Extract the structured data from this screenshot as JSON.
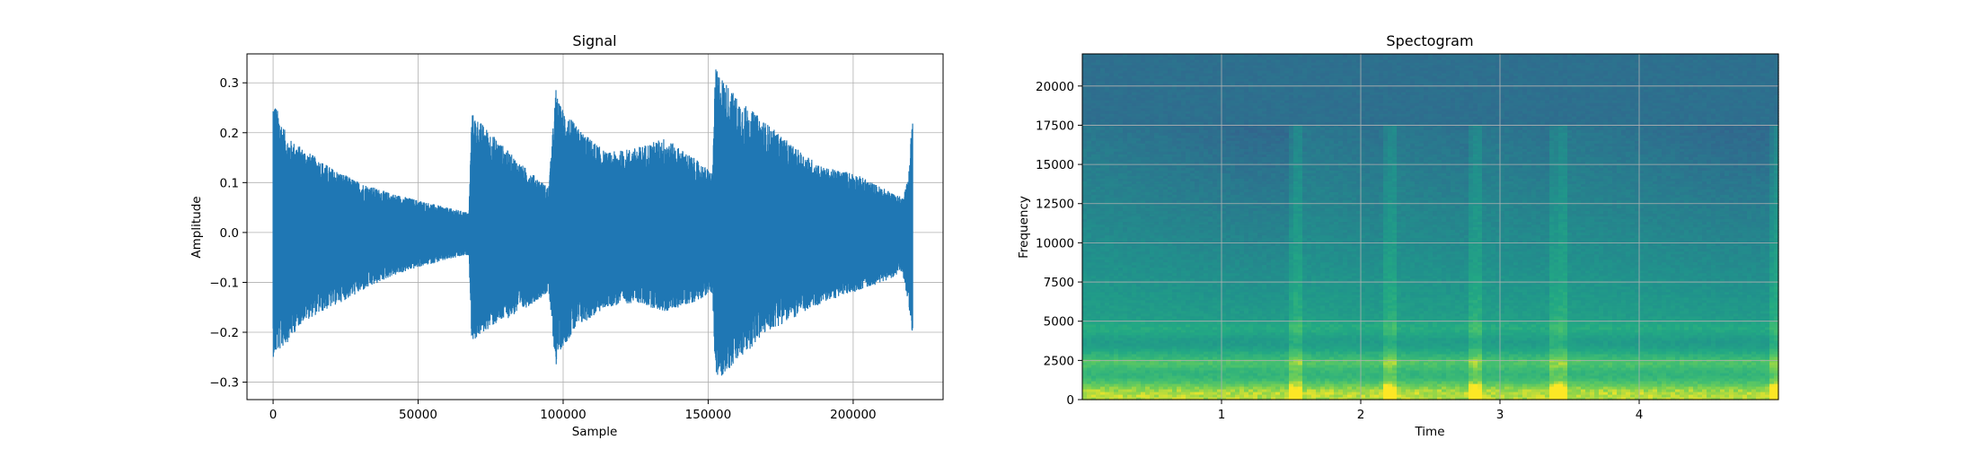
{
  "chart_data": [
    {
      "type": "line",
      "title": "Signal",
      "xlabel": "Sample",
      "ylabel": "Amplitude",
      "xlim": [
        -9000,
        231000
      ],
      "ylim": [
        -0.335,
        0.358
      ],
      "grid": true,
      "line_color": "#1f77b4",
      "x_ticks": [
        0,
        50000,
        100000,
        150000,
        200000
      ],
      "x_tick_labels": [
        "0",
        "50000",
        "100000",
        "150000",
        "200000"
      ],
      "y_ticks": [
        -0.3,
        -0.2,
        -0.1,
        0.0,
        0.1,
        0.2,
        0.3
      ],
      "y_tick_labels": [
        "−0.3",
        "−0.2",
        "−0.1",
        "0.0",
        "0.1",
        "0.2",
        "0.3"
      ],
      "series": [
        {
          "sample": [
            0,
            5000,
            10000,
            20000,
            30000,
            40000,
            50000,
            60000,
            67500,
            68500,
            75000,
            85000,
            95000,
            97500,
            98500,
            105000,
            115000,
            125000,
            135000,
            145000,
            151500,
            152500,
            160000,
            170000,
            180000,
            190000,
            200000,
            210000,
            217000,
            219000,
            220500
          ],
          "upper": [
            0.27,
            0.19,
            0.17,
            0.13,
            0.1,
            0.08,
            0.065,
            0.05,
            0.04,
            0.24,
            0.2,
            0.14,
            0.09,
            0.29,
            0.26,
            0.21,
            0.16,
            0.17,
            0.19,
            0.15,
            0.12,
            0.33,
            0.27,
            0.22,
            0.17,
            0.13,
            0.12,
            0.09,
            0.07,
            0.11,
            0.25
          ],
          "lower": [
            -0.25,
            -0.22,
            -0.18,
            -0.15,
            -0.12,
            -0.09,
            -0.07,
            -0.055,
            -0.045,
            -0.22,
            -0.19,
            -0.16,
            -0.12,
            -0.27,
            -0.24,
            -0.19,
            -0.15,
            -0.14,
            -0.16,
            -0.14,
            -0.12,
            -0.3,
            -0.26,
            -0.2,
            -0.17,
            -0.14,
            -0.12,
            -0.1,
            -0.08,
            -0.14,
            -0.21
          ]
        }
      ]
    },
    {
      "type": "heatmap",
      "title": "Spectogram",
      "xlabel": "Time",
      "ylabel": "Frequency",
      "xlim": [
        0,
        5.0
      ],
      "ylim": [
        0,
        22050
      ],
      "grid": true,
      "colormap": "viridis",
      "x_ticks": [
        1,
        2,
        3,
        4
      ],
      "x_tick_labels": [
        "1",
        "2",
        "3",
        "4"
      ],
      "y_ticks": [
        0,
        2500,
        5000,
        7500,
        10000,
        12500,
        15000,
        17500,
        20000
      ],
      "y_tick_labels": [
        "0",
        "2500",
        "5000",
        "7500",
        "10000",
        "12500",
        "15000",
        "17500",
        "20000"
      ],
      "onsets": [
        0.0,
        1.53,
        2.2,
        2.82,
        3.42,
        4.97
      ],
      "cutoff_frequency": 17500
    }
  ]
}
